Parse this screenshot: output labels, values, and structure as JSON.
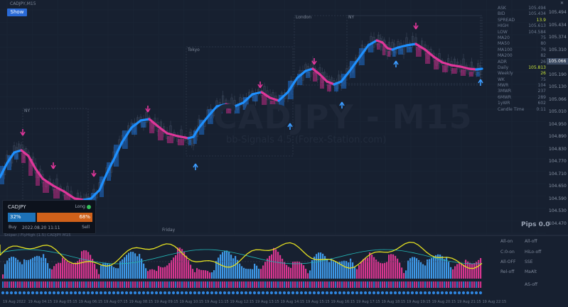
{
  "window": {
    "title": "CADJPY,M15",
    "show_button": "Show"
  },
  "chart": {
    "watermark_symbol": "CADJPY - M15",
    "watermark_credit": "bb-Signals 4.5 (Forex-Station.com)",
    "sessions": [
      "Tokyo",
      "London",
      "NY"
    ],
    "tokyo_label": "Tokyo",
    "london_label": "London",
    "ny_label": "NY",
    "friday_label": "Friday",
    "current_price": "105.066",
    "pips_label": "Pips 0.0",
    "price_axis": [
      "105.494",
      "105.434",
      "105.374",
      "105.310",
      "105.250",
      "105.190",
      "105.130",
      "105.066",
      "105.010",
      "104.950",
      "104.890",
      "104.830",
      "104.770",
      "104.710",
      "104.650",
      "104.590",
      "104.530",
      "104.470"
    ],
    "bottom_dates": [
      "19 Aug 2022",
      "19 Aug 04:15",
      "19 Aug 05:15",
      "19 Aug 06:15",
      "19 Aug 07:15",
      "19 Aug 08:15",
      "19 Aug 09:15",
      "19 Aug 10:15",
      "19 Aug 11:15",
      "19 Aug 12:15",
      "19 Aug 13:15",
      "19 Aug 14:15",
      "19 Aug 15:15",
      "19 Aug 16:15",
      "19 Aug 17:15",
      "19 Aug 18:15",
      "19 Aug 19:15",
      "19 Aug 20:15",
      "19 Aug 21:15",
      "19 Aug 22:15"
    ]
  },
  "info_panel": {
    "header_right": "13.9",
    "rows": [
      {
        "label": "ASK",
        "value": "105.494"
      },
      {
        "label": "BID",
        "value": "105.434"
      },
      {
        "label": "SPREAD",
        "value": "13.9"
      },
      {
        "label": "HIGH",
        "value": "105.613"
      },
      {
        "label": "LOW",
        "value": "104.584"
      },
      {
        "label": "MA20",
        "value": "75"
      },
      {
        "label": "MA50",
        "value": "80"
      },
      {
        "label": "MA100",
        "value": "76"
      },
      {
        "label": "MA200",
        "value": "82"
      },
      {
        "label": "ADR",
        "value": "26"
      },
      {
        "label": "Daily",
        "value": "105.813"
      },
      {
        "label": "Weekly",
        "value": "26"
      },
      {
        "label": "WK",
        "value": "75"
      },
      {
        "label": "MWR",
        "value": "104"
      },
      {
        "label": "3MWR",
        "value": "237"
      },
      {
        "label": "6MWR",
        "value": "289"
      },
      {
        "label": "1yWR",
        "value": "602"
      },
      {
        "label": "Candle Time",
        "value": "0:11"
      }
    ]
  },
  "trade_card": {
    "symbol": "CADJPY",
    "direction": "Long",
    "buy_pct": "32%",
    "sell_pct": "68%",
    "buy_label": "Buy",
    "sell_label": "Sell",
    "timestamp": "2022.08.20 11:11"
  },
  "sub_window": {
    "label": "Sniper / FlyHigh (1.5) CADJPY M15",
    "buttons": [
      {
        "id": "all-on",
        "label": "All-on"
      },
      {
        "id": "all-off",
        "label": "All-off"
      },
      {
        "id": "crossover",
        "label": "C:0-on"
      },
      {
        "id": "hi-lo",
        "label": "HiLo-off"
      },
      {
        "id": "all-off-2",
        "label": "All-OFF"
      },
      {
        "id": "ss",
        "label": "SSE"
      },
      {
        "id": "rel-off",
        "label": "Rel-off"
      },
      {
        "id": "mask",
        "label": "MaAlt"
      },
      {
        "id": "as-off",
        "label": "AS-off"
      }
    ]
  },
  "colors": {
    "bg": "#172030",
    "blue": "#1e90ff",
    "pink": "#e0369a",
    "yellow": "#e4e021",
    "teal": "#23b5b5",
    "grid": "#202a3b"
  }
}
